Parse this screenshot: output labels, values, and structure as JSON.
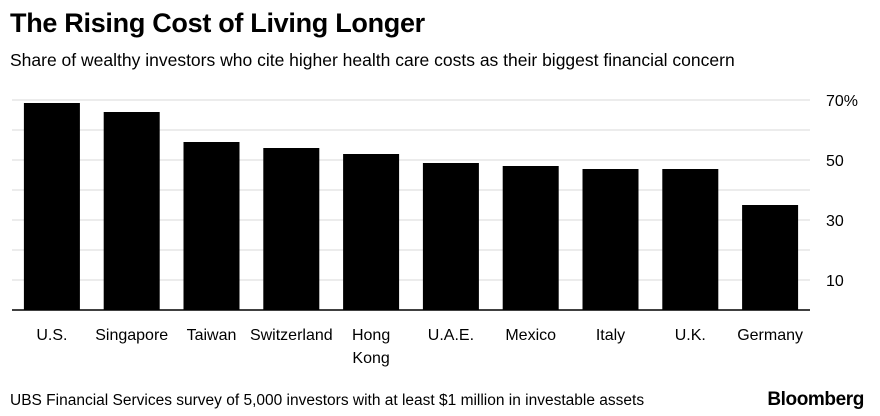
{
  "header": {
    "title": "The Rising Cost of Living Longer",
    "subtitle": "Share of wealthy investors who cite higher health care costs as their biggest financial concern"
  },
  "footer": {
    "source": "UBS Financial Services survey of 5,000 investors with at least $1 million in investable assets",
    "brand": "Bloomberg"
  },
  "chart_data": {
    "type": "bar",
    "categories": [
      "U.S.",
      "Singapore",
      "Taiwan",
      "Switzerland",
      "Hong Kong",
      "U.A.E.",
      "Mexico",
      "Italy",
      "U.K.",
      "Germany"
    ],
    "category_label_lines": [
      [
        "U.S."
      ],
      [
        "Singapore"
      ],
      [
        "Taiwan"
      ],
      [
        "Switzerland"
      ],
      [
        "Hong",
        "Kong"
      ],
      [
        "U.A.E."
      ],
      [
        "Mexico"
      ],
      [
        "Italy"
      ],
      [
        "U.K."
      ],
      [
        "Germany"
      ]
    ],
    "values": [
      69,
      66,
      56,
      54,
      52,
      49,
      48,
      47,
      47,
      35
    ],
    "ylim": [
      0,
      70
    ],
    "yticks": [
      10,
      30,
      50,
      70
    ],
    "ytick_labels": [
      "10",
      "30",
      "50",
      "70%"
    ],
    "grid": true,
    "bar_color": "#000000",
    "grid_color": "#d9d9d9"
  }
}
